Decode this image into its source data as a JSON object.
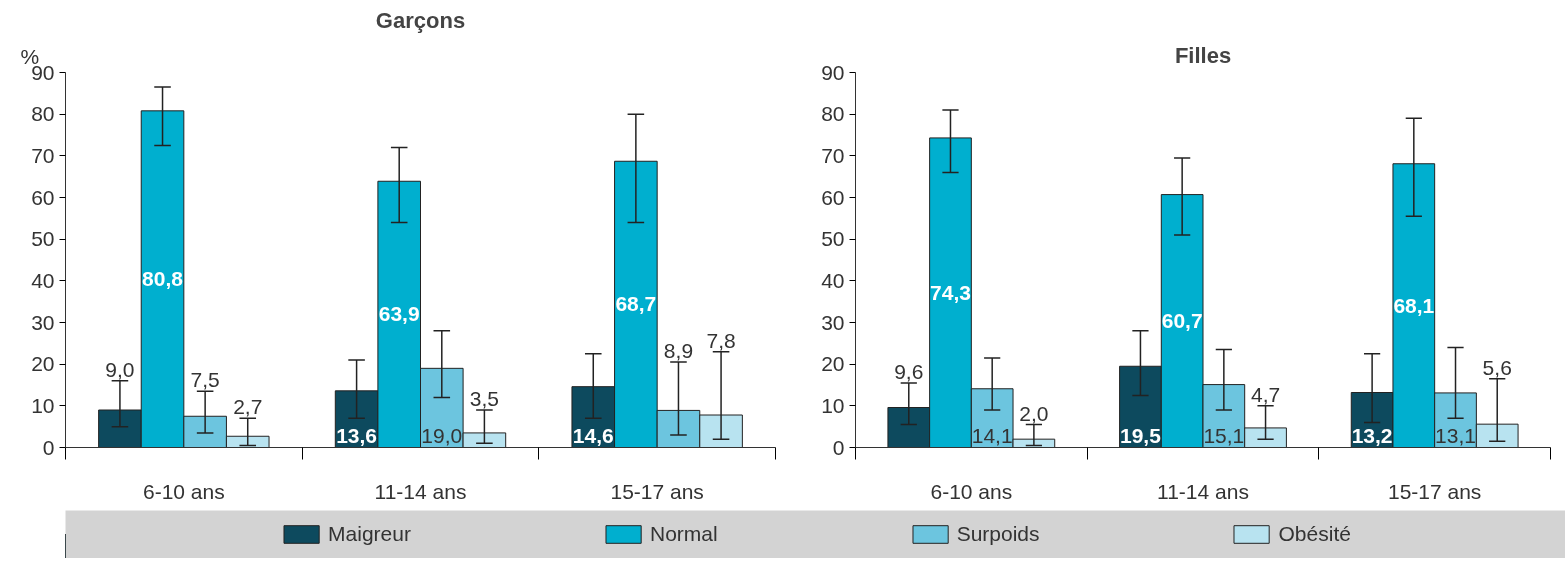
{
  "chart_data": [
    {
      "type": "bar",
      "title": "Garçons",
      "ylabel": "%",
      "categories": [
        "6-10 ans",
        "11-14 ans",
        "15-17 ans"
      ],
      "ylim": [
        0,
        90
      ],
      "yticks": [
        0,
        10,
        20,
        30,
        40,
        50,
        60,
        70,
        80,
        90
      ],
      "grid": false,
      "legend": "bottom",
      "series": [
        {
          "name": "Maigreur",
          "color": "#0d4a5e",
          "values": [
            9.0,
            13.6,
            14.6
          ],
          "value_labels": [
            "9,0",
            "13,6",
            "14,6"
          ],
          "errors": [
            [
              5,
              16
            ],
            [
              7,
              21
            ],
            [
              7,
              22.5
            ]
          ]
        },
        {
          "name": "Normal",
          "color": "#00afcf",
          "values": [
            80.8,
            63.9,
            68.7
          ],
          "value_labels": [
            "80,8",
            "63,9",
            "68,7"
          ],
          "errors": [
            [
              72.5,
              86.5
            ],
            [
              54,
              72
            ],
            [
              54,
              80
            ]
          ]
        },
        {
          "name": "Surpoids",
          "color": "#6cc5df",
          "values": [
            7.5,
            19.0,
            8.9
          ],
          "value_labels": [
            "7,5",
            "19,0",
            "8,9"
          ],
          "errors": [
            [
              3.5,
              13.5
            ],
            [
              12,
              28
            ],
            [
              3,
              20.5
            ]
          ]
        },
        {
          "name": "Obésité",
          "color": "#b8e3f0",
          "values": [
            2.7,
            3.5,
            7.8
          ],
          "value_labels": [
            "2,7",
            "3,5",
            "7,8"
          ],
          "errors": [
            [
              0.5,
              7
            ],
            [
              1,
              9
            ],
            [
              2,
              23
            ]
          ]
        }
      ]
    },
    {
      "type": "bar",
      "title": "Filles",
      "categories": [
        "6-10 ans",
        "11-14 ans",
        "15-17 ans"
      ],
      "ylim": [
        0,
        90
      ],
      "yticks": [
        0,
        10,
        20,
        30,
        40,
        50,
        60,
        70,
        80,
        90
      ],
      "grid": false,
      "series": [
        {
          "color": "#0d4a5e",
          "values": [
            9.6,
            19.5,
            13.2
          ],
          "value_labels": [
            "9,6",
            "19,5",
            "13,2"
          ],
          "errors": [
            [
              5.5,
              15.5
            ],
            [
              12.5,
              28
            ],
            [
              6,
              22.5
            ]
          ]
        },
        {
          "color": "#00afcf",
          "values": [
            74.3,
            60.7,
            68.1
          ],
          "value_labels": [
            "74,3",
            "60,7",
            "68,1"
          ],
          "errors": [
            [
              66,
              81
            ],
            [
              51,
              69.5
            ],
            [
              55.5,
              79
            ]
          ]
        },
        {
          "color": "#6cc5df",
          "values": [
            14.1,
            15.1,
            13.1
          ],
          "value_labels": [
            "14,1",
            "15,1",
            "13,1"
          ],
          "errors": [
            [
              9,
              21.5
            ],
            [
              9,
              23.5
            ],
            [
              7,
              24
            ]
          ]
        },
        {
          "color": "#b8e3f0",
          "values": [
            2.0,
            4.7,
            5.6
          ],
          "value_labels": [
            "2,0",
            "4,7",
            "5,6"
          ],
          "errors": [
            [
              0.5,
              5.5
            ],
            [
              2,
              10
            ],
            [
              1.5,
              16.5
            ]
          ]
        }
      ]
    }
  ]
}
